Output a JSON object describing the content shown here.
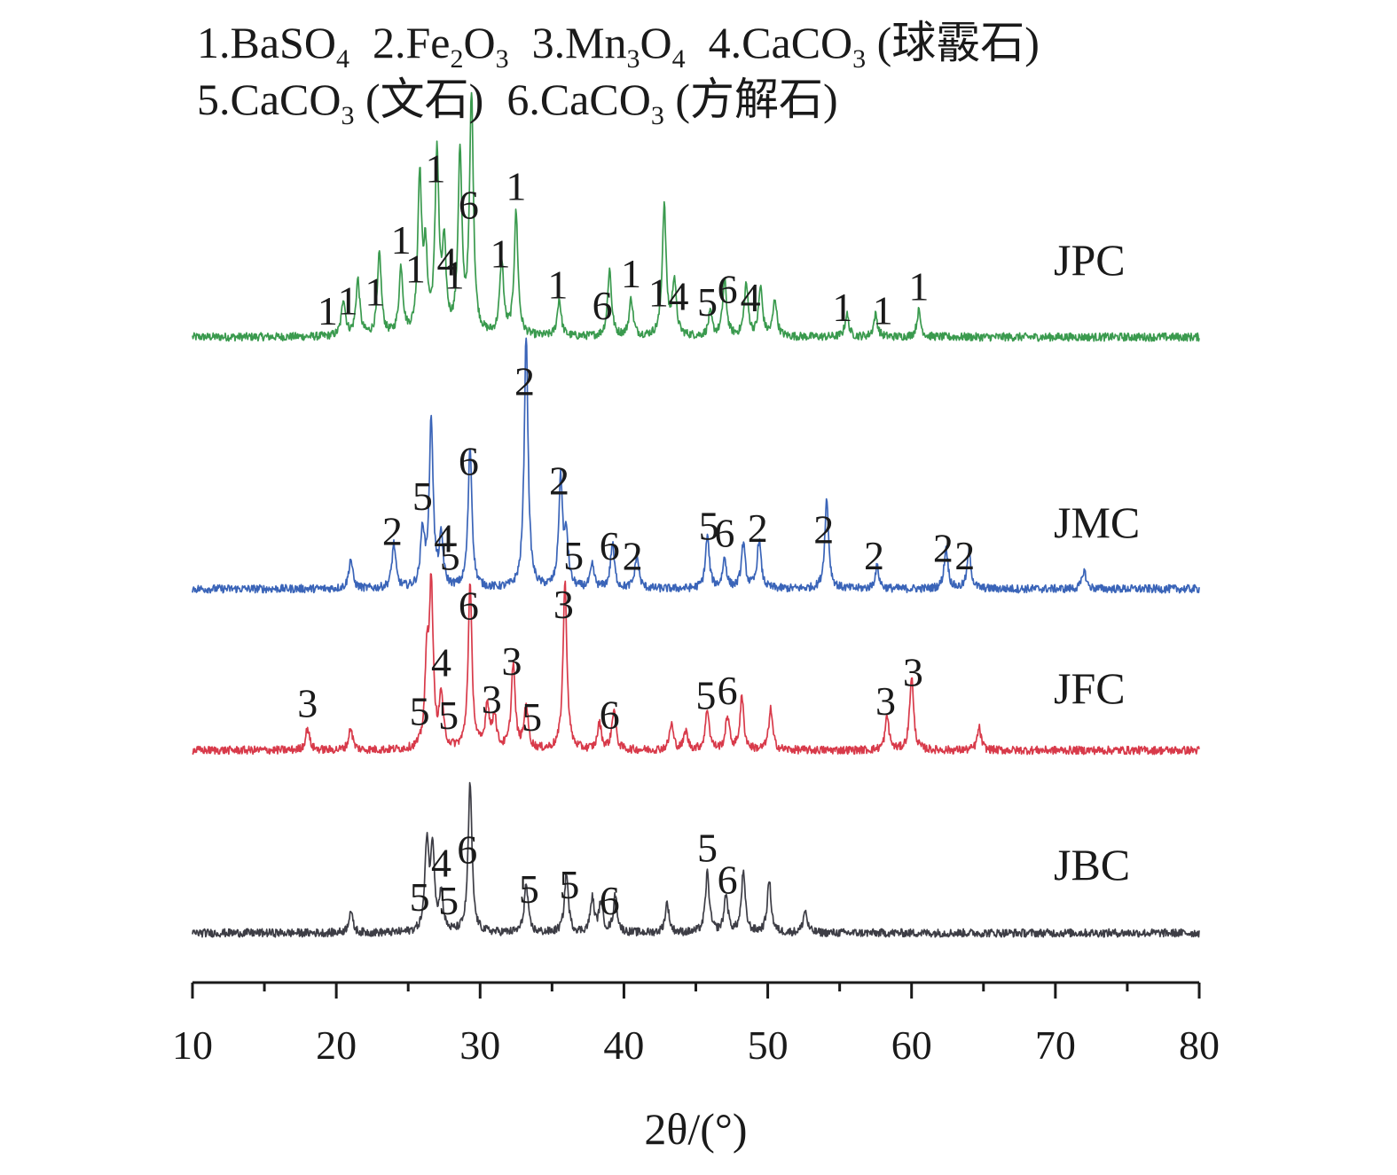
{
  "chart_data": {
    "type": "line",
    "xlabel": "2θ/(°)",
    "xlim": [
      10,
      80
    ],
    "x_ticks": [
      "10",
      "20",
      "30",
      "40",
      "50",
      "60",
      "70",
      "80"
    ],
    "yaxis_visible": false,
    "grid": false,
    "legend": {
      "placement": "top",
      "lines": [
        [
          {
            "num": "1.",
            "pre": "BaSO",
            "sub": "4",
            "post": ""
          },
          {
            "num": "2.",
            "pre": "Fe",
            "sub": "2",
            "post": "O",
            "sub2": "3"
          },
          {
            "num": "3.",
            "pre": "Mn",
            "sub": "3",
            "post": "O",
            "sub2": "4"
          },
          {
            "num": "4.",
            "pre": "CaCO",
            "sub": "3",
            "post": " (球霰石)"
          }
        ],
        [
          {
            "num": "5.",
            "pre": "CaCO",
            "sub": "3",
            "post": " (文石)"
          },
          {
            "num": "6.",
            "pre": "CaCO",
            "sub": "3",
            "post": " (方解石)"
          }
        ]
      ]
    },
    "series": [
      {
        "name": "JPC",
        "color": "#3a9a4e",
        "baseline": 0.03,
        "peaks": [
          [
            20.5,
            0.1
          ],
          [
            21.5,
            0.15
          ],
          [
            23.0,
            0.22
          ],
          [
            24.5,
            0.18
          ],
          [
            25.8,
            0.42
          ],
          [
            26.2,
            0.2
          ],
          [
            27.0,
            0.48
          ],
          [
            27.5,
            0.22
          ],
          [
            28.6,
            0.48
          ],
          [
            29.4,
            0.64
          ],
          [
            31.5,
            0.2
          ],
          [
            32.5,
            0.33
          ],
          [
            35.5,
            0.1
          ],
          [
            39.0,
            0.18
          ],
          [
            40.5,
            0.1
          ],
          [
            42.8,
            0.35
          ],
          [
            43.5,
            0.15
          ],
          [
            46.0,
            0.06
          ],
          [
            47.0,
            0.15
          ],
          [
            48.5,
            0.14
          ],
          [
            49.5,
            0.13
          ],
          [
            50.5,
            0.1
          ],
          [
            55.5,
            0.06
          ],
          [
            57.5,
            0.06
          ],
          [
            60.5,
            0.07
          ]
        ],
        "peak_labels": [
          {
            "x": 19.4,
            "t": "1"
          },
          {
            "x": 20.8,
            "t": "1"
          },
          {
            "x": 22.7,
            "t": "1"
          },
          {
            "x": 24.5,
            "t": "1"
          },
          {
            "x": 25.5,
            "t": "1"
          },
          {
            "x": 26.9,
            "t": "1"
          },
          {
            "x": 27.7,
            "t": "4"
          },
          {
            "x": 28.2,
            "t": "1"
          },
          {
            "x": 29.2,
            "t": "6"
          },
          {
            "x": 31.4,
            "t": "1"
          },
          {
            "x": 32.5,
            "t": "1"
          },
          {
            "x": 35.4,
            "t": "1"
          },
          {
            "x": 38.5,
            "t": "6"
          },
          {
            "x": 40.5,
            "t": "1"
          },
          {
            "x": 42.4,
            "t": "1"
          },
          {
            "x": 43.8,
            "t": "4"
          },
          {
            "x": 45.8,
            "t": "5"
          },
          {
            "x": 47.2,
            "t": "6"
          },
          {
            "x": 48.8,
            "t": "4"
          },
          {
            "x": 55.2,
            "t": "1"
          },
          {
            "x": 58.0,
            "t": "1"
          },
          {
            "x": 60.5,
            "t": "1"
          }
        ]
      },
      {
        "name": "JMC",
        "color": "#3a64b8",
        "baseline": 0.03,
        "peaks": [
          [
            21.0,
            0.08
          ],
          [
            24.0,
            0.12
          ],
          [
            26.0,
            0.15
          ],
          [
            26.6,
            0.45
          ],
          [
            27.3,
            0.13
          ],
          [
            29.3,
            0.38
          ],
          [
            33.2,
            0.68
          ],
          [
            35.6,
            0.29
          ],
          [
            36.0,
            0.13
          ],
          [
            37.8,
            0.06
          ],
          [
            39.2,
            0.12
          ],
          [
            40.9,
            0.09
          ],
          [
            45.8,
            0.14
          ],
          [
            47.0,
            0.08
          ],
          [
            48.3,
            0.12
          ],
          [
            49.4,
            0.13
          ],
          [
            54.1,
            0.24
          ],
          [
            57.6,
            0.06
          ],
          [
            62.4,
            0.11
          ],
          [
            64.0,
            0.1
          ],
          [
            72.0,
            0.05
          ]
        ],
        "peak_labels": [
          {
            "x": 23.9,
            "t": "2"
          },
          {
            "x": 26.0,
            "t": "5"
          },
          {
            "x": 27.5,
            "t": "4"
          },
          {
            "x": 27.9,
            "t": "5"
          },
          {
            "x": 29.2,
            "t": "6"
          },
          {
            "x": 33.1,
            "t": "2"
          },
          {
            "x": 35.5,
            "t": "2"
          },
          {
            "x": 36.5,
            "t": "5"
          },
          {
            "x": 39.0,
            "t": "6"
          },
          {
            "x": 40.6,
            "t": "2"
          },
          {
            "x": 45.9,
            "t": "5"
          },
          {
            "x": 47.0,
            "t": "6"
          },
          {
            "x": 49.3,
            "t": "2"
          },
          {
            "x": 53.9,
            "t": "2"
          },
          {
            "x": 57.4,
            "t": "2"
          },
          {
            "x": 62.2,
            "t": "2"
          },
          {
            "x": 63.7,
            "t": "2"
          }
        ]
      },
      {
        "name": "JFC",
        "color": "#d83a4a",
        "baseline": 0.03,
        "peaks": [
          [
            18.0,
            0.06
          ],
          [
            21.0,
            0.06
          ],
          [
            26.3,
            0.22
          ],
          [
            26.6,
            0.42
          ],
          [
            27.3,
            0.14
          ],
          [
            29.3,
            0.44
          ],
          [
            30.5,
            0.12
          ],
          [
            31.0,
            0.09
          ],
          [
            32.3,
            0.23
          ],
          [
            33.2,
            0.12
          ],
          [
            35.9,
            0.45
          ],
          [
            38.3,
            0.07
          ],
          [
            39.3,
            0.11
          ],
          [
            43.3,
            0.07
          ],
          [
            44.3,
            0.05
          ],
          [
            45.8,
            0.11
          ],
          [
            47.2,
            0.09
          ],
          [
            48.2,
            0.14
          ],
          [
            50.2,
            0.11
          ],
          [
            58.3,
            0.09
          ],
          [
            60.0,
            0.2
          ],
          [
            64.7,
            0.06
          ]
        ],
        "peak_labels": [
          {
            "x": 18.0,
            "t": "3"
          },
          {
            "x": 25.8,
            "t": "5"
          },
          {
            "x": 27.3,
            "t": "4"
          },
          {
            "x": 27.8,
            "t": "5"
          },
          {
            "x": 29.2,
            "t": "6"
          },
          {
            "x": 30.8,
            "t": "3"
          },
          {
            "x": 32.2,
            "t": "3"
          },
          {
            "x": 33.6,
            "t": "5"
          },
          {
            "x": 35.8,
            "t": "3"
          },
          {
            "x": 39.0,
            "t": "6"
          },
          {
            "x": 45.7,
            "t": "5"
          },
          {
            "x": 47.2,
            "t": "6"
          },
          {
            "x": 58.2,
            "t": "3"
          },
          {
            "x": 60.1,
            "t": "3"
          }
        ]
      },
      {
        "name": "JBC",
        "color": "#3d3d45",
        "baseline": 0.03,
        "peaks": [
          [
            21.0,
            0.06
          ],
          [
            26.3,
            0.24
          ],
          [
            26.7,
            0.22
          ],
          [
            27.3,
            0.1
          ],
          [
            29.3,
            0.4
          ],
          [
            33.2,
            0.13
          ],
          [
            36.0,
            0.16
          ],
          [
            37.8,
            0.09
          ],
          [
            38.4,
            0.08
          ],
          [
            39.4,
            0.1
          ],
          [
            43.0,
            0.08
          ],
          [
            45.8,
            0.16
          ],
          [
            47.1,
            0.1
          ],
          [
            48.3,
            0.16
          ],
          [
            50.1,
            0.14
          ],
          [
            52.6,
            0.06
          ]
        ],
        "peak_labels": [
          {
            "x": 25.8,
            "t": "5"
          },
          {
            "x": 27.3,
            "t": "4"
          },
          {
            "x": 27.8,
            "t": "5"
          },
          {
            "x": 29.1,
            "t": "6"
          },
          {
            "x": 33.4,
            "t": "5"
          },
          {
            "x": 36.2,
            "t": "5"
          },
          {
            "x": 39.0,
            "t": "6"
          },
          {
            "x": 45.8,
            "t": "5"
          },
          {
            "x": 47.2,
            "t": "6"
          }
        ]
      }
    ]
  }
}
